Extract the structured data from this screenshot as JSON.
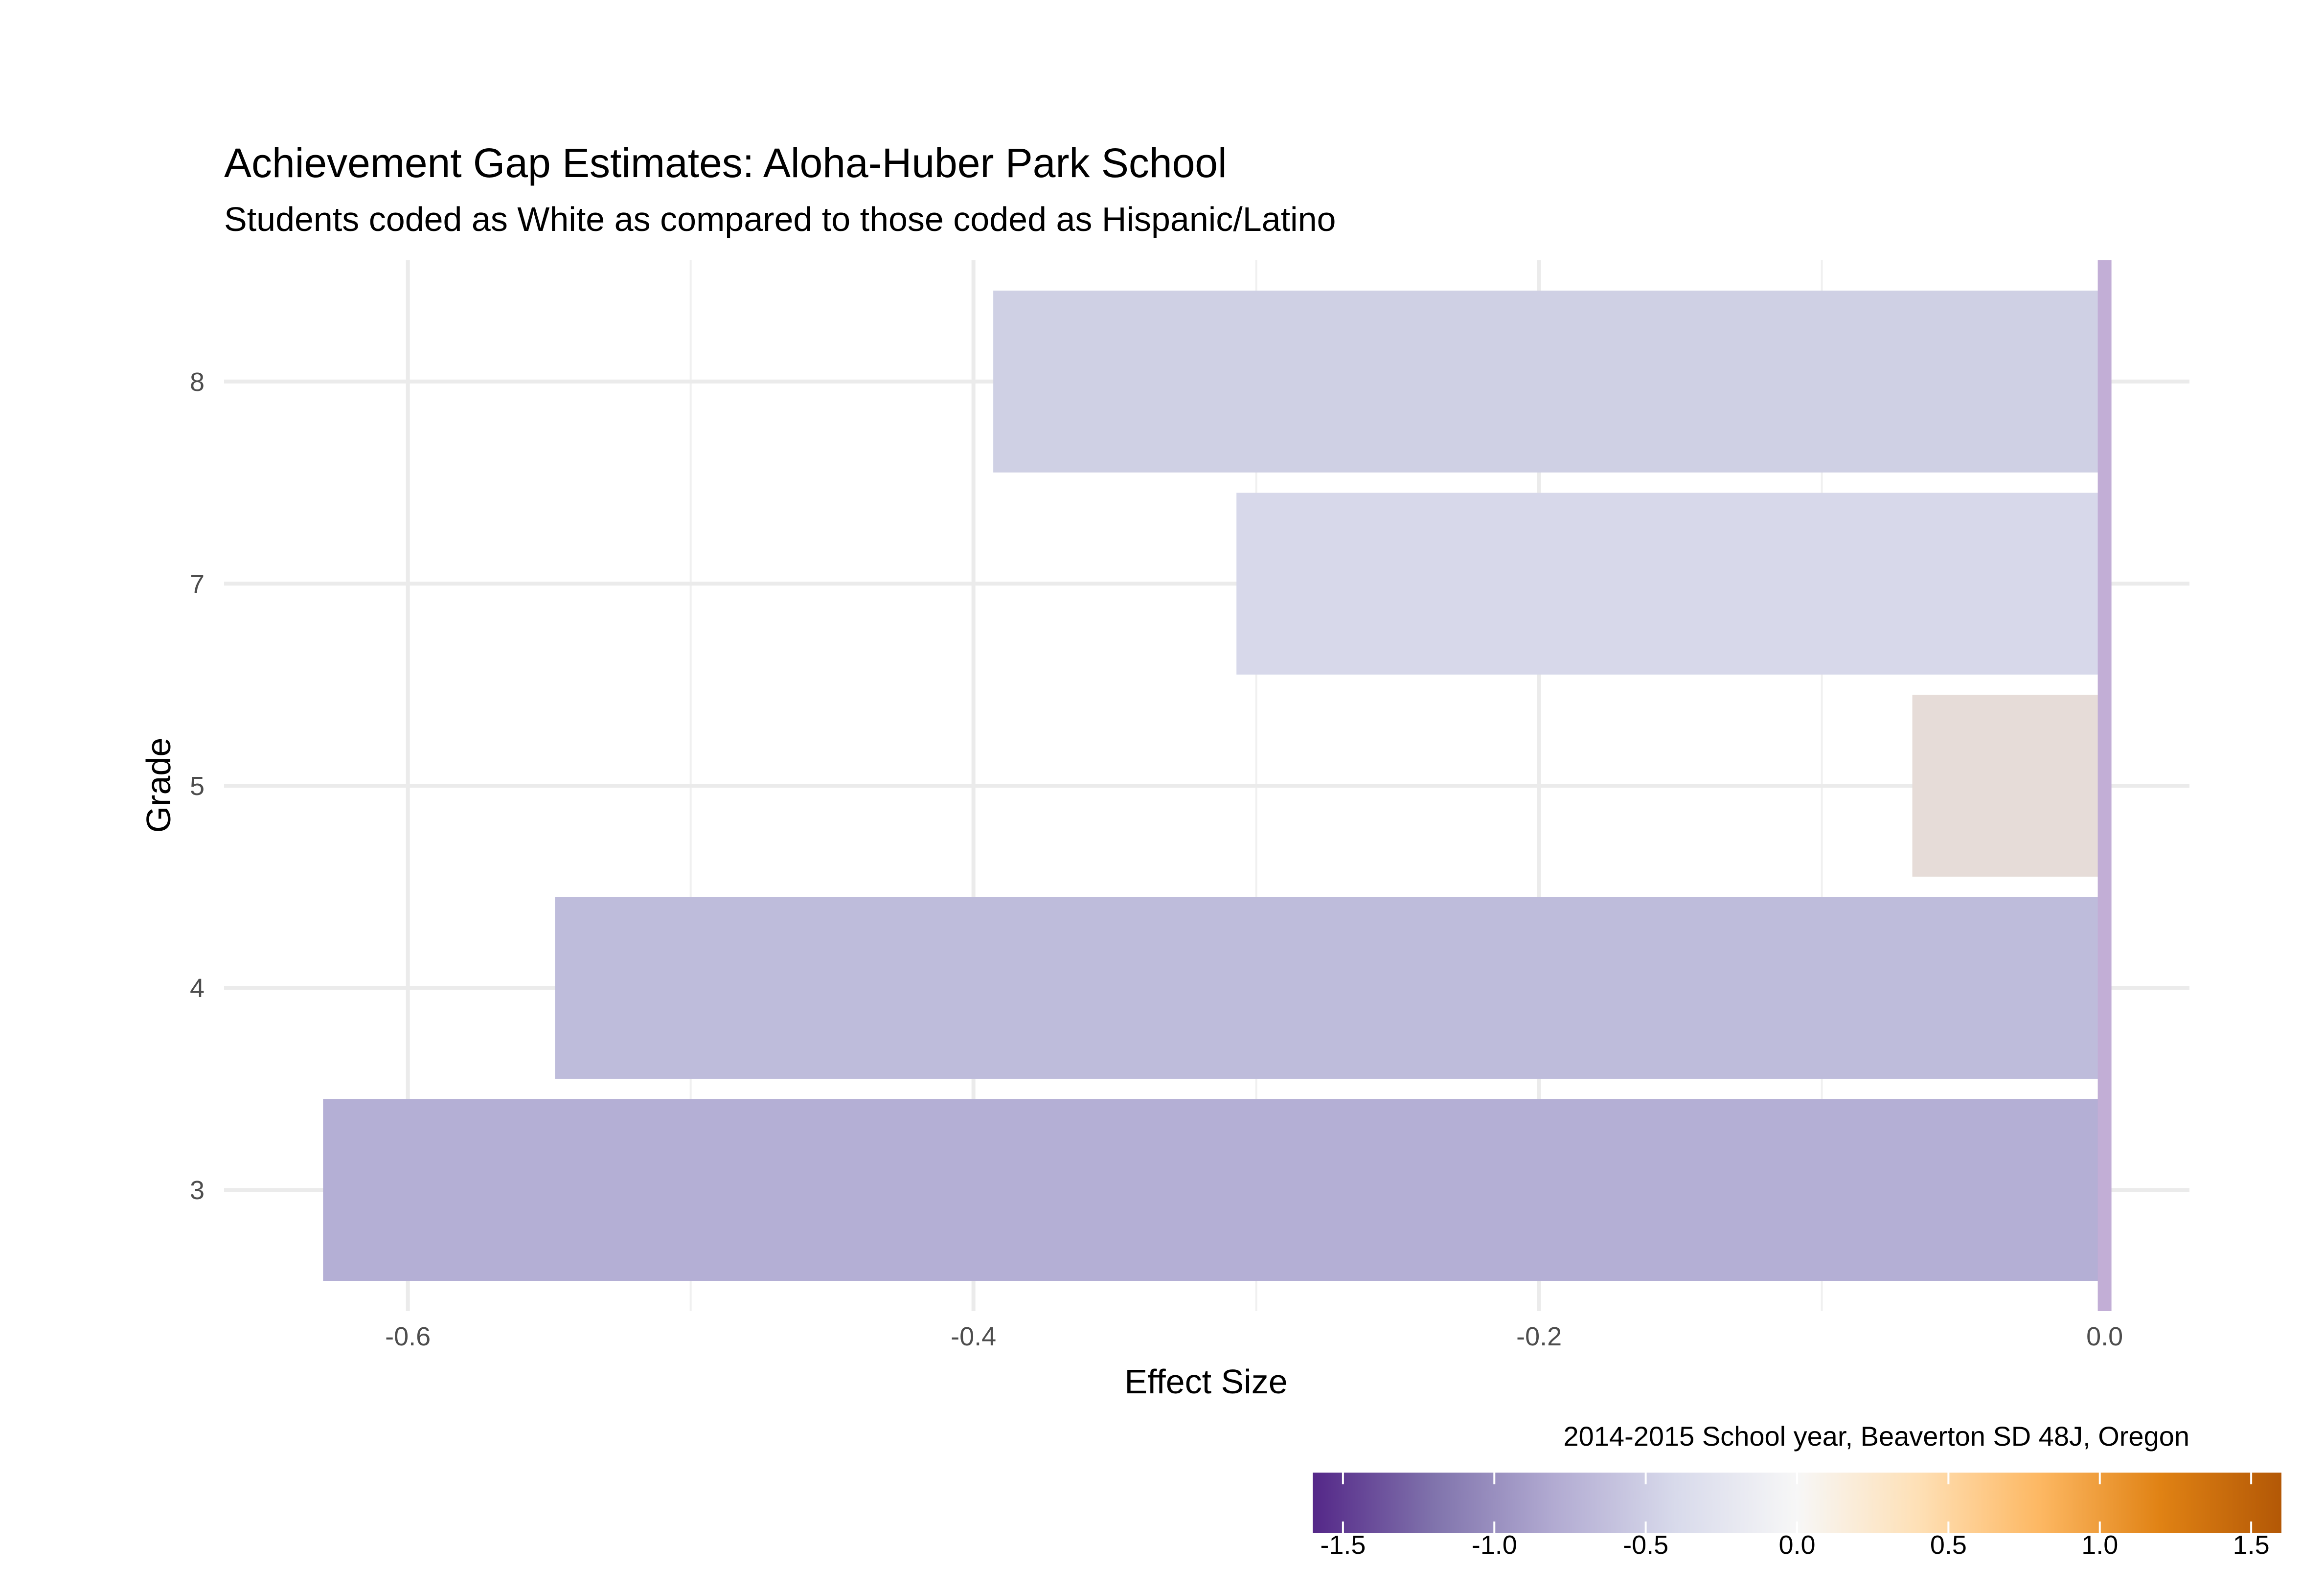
{
  "chart_data": {
    "type": "bar",
    "orientation": "horizontal",
    "title": "Achievement Gap Estimates: Aloha-Huber Park School",
    "subtitle": "Students coded as White as compared to those coded as Hispanic/Latino",
    "xlabel": "Effect Size",
    "ylabel": "Grade",
    "caption": "2014-2015 School year, Beaverton SD 48J, Oregon",
    "categories": [
      "3",
      "4",
      "5",
      "7",
      "8"
    ],
    "values": [
      -0.63,
      -0.548,
      -0.068,
      -0.307,
      -0.393
    ],
    "bar_colors": [
      "#b4afd5",
      "#bebcdb",
      "#e6dcd8",
      "#d7d8ea",
      "#cfd0e4"
    ],
    "xlim": [
      -0.665,
      0.03
    ],
    "x_ticks": [
      -0.6,
      -0.4,
      -0.2,
      0.0
    ],
    "x_tick_labels": [
      "-0.6",
      "-0.4",
      "-0.2",
      "0.0"
    ],
    "reference_line": {
      "x": 0.0,
      "color": "#c2aed6"
    },
    "grid": true,
    "legend": {
      "position": "bottom-right",
      "type": "colorbar",
      "range": [
        -1.6,
        1.6
      ],
      "ticks": [
        -1.5,
        -1.0,
        -0.5,
        0.0,
        0.5,
        1.0,
        1.5
      ],
      "tick_labels": [
        "-1.5",
        "-1.0",
        "-0.5",
        "0.0",
        "0.5",
        "1.0",
        "1.5"
      ],
      "gradient_colors": [
        "#542788",
        "#8073ac",
        "#b2abd2",
        "#d8daeb",
        "#f7f7f7",
        "#fee0b6",
        "#fdb863",
        "#e08214",
        "#b35806"
      ]
    }
  }
}
